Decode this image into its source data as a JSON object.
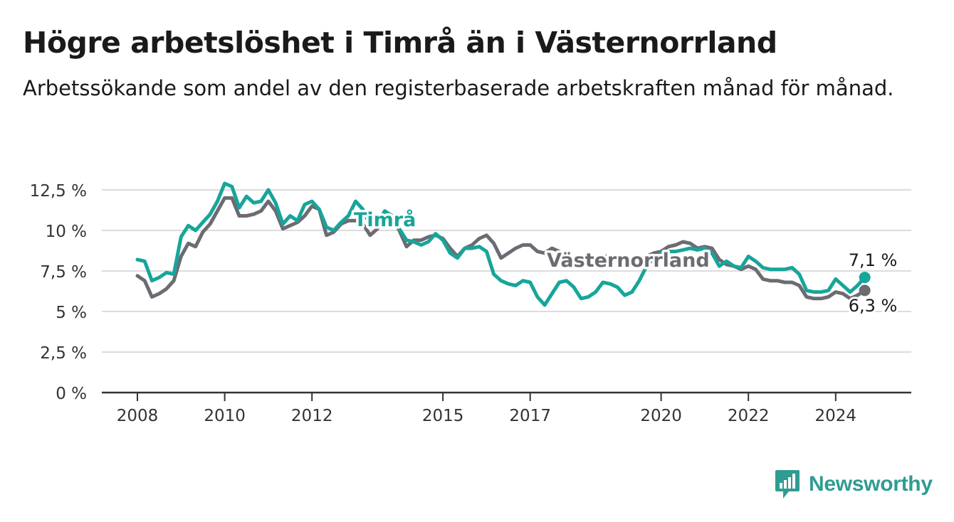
{
  "title": "Högre arbetslöshet i Timrå än i Västernorrland",
  "subtitle": "Arbetssökande som andel av den registerbaserade arbetskraften månad för månad.",
  "brand": {
    "name": "Newsworthy",
    "color": "#2f9c92",
    "icon": "bar-chart-icon"
  },
  "chart_data": {
    "type": "line",
    "x_axis_ticks": [
      "2008",
      "2010",
      "2012",
      "2015",
      "2017",
      "2020",
      "2022",
      "2024"
    ],
    "y_axis_ticks": [
      "0 %",
      "2,5 %",
      "5 %",
      "7,5 %",
      "10 %",
      "12,5 %"
    ],
    "ylim": [
      0,
      12.5
    ],
    "x_range": [
      "2008-01",
      "2024-12"
    ],
    "grid": "horizontal",
    "series": [
      {
        "name": "Västernorrland",
        "color": "#6d6b72",
        "end_label": "6,3 %",
        "points": [
          [
            "2008-01",
            7.2
          ],
          [
            "2008-03",
            6.9
          ],
          [
            "2008-05",
            5.9
          ],
          [
            "2008-07",
            6.1
          ],
          [
            "2008-09",
            6.4
          ],
          [
            "2008-11",
            6.9
          ],
          [
            "2009-01",
            8.4
          ],
          [
            "2009-03",
            9.2
          ],
          [
            "2009-05",
            9.0
          ],
          [
            "2009-07",
            9.9
          ],
          [
            "2009-09",
            10.4
          ],
          [
            "2009-11",
            11.2
          ],
          [
            "2010-01",
            12.0
          ],
          [
            "2010-03",
            12.0
          ],
          [
            "2010-05",
            10.9
          ],
          [
            "2010-07",
            10.9
          ],
          [
            "2010-09",
            11.0
          ],
          [
            "2010-11",
            11.2
          ],
          [
            "2011-01",
            11.8
          ],
          [
            "2011-03",
            11.2
          ],
          [
            "2011-05",
            10.1
          ],
          [
            "2011-07",
            10.3
          ],
          [
            "2011-09",
            10.5
          ],
          [
            "2011-11",
            10.9
          ],
          [
            "2012-01",
            11.5
          ],
          [
            "2012-03",
            11.3
          ],
          [
            "2012-05",
            9.7
          ],
          [
            "2012-07",
            9.9
          ],
          [
            "2012-09",
            10.4
          ],
          [
            "2012-11",
            10.6
          ],
          [
            "2013-01",
            10.6
          ],
          [
            "2013-03",
            10.4
          ],
          [
            "2013-05",
            9.7
          ],
          [
            "2013-07",
            10.1
          ],
          [
            "2013-09",
            10.9
          ],
          [
            "2013-11",
            10.9
          ],
          [
            "2014-01",
            10.0
          ],
          [
            "2014-03",
            9.0
          ],
          [
            "2014-05",
            9.4
          ],
          [
            "2014-07",
            9.4
          ],
          [
            "2014-09",
            9.6
          ],
          [
            "2014-11",
            9.7
          ],
          [
            "2015-01",
            9.5
          ],
          [
            "2015-03",
            8.9
          ],
          [
            "2015-05",
            8.4
          ],
          [
            "2015-07",
            8.9
          ],
          [
            "2015-09",
            9.1
          ],
          [
            "2015-11",
            9.5
          ],
          [
            "2016-01",
            9.7
          ],
          [
            "2016-03",
            9.2
          ],
          [
            "2016-05",
            8.3
          ],
          [
            "2016-07",
            8.6
          ],
          [
            "2016-09",
            8.9
          ],
          [
            "2016-11",
            9.1
          ],
          [
            "2017-01",
            9.1
          ],
          [
            "2017-03",
            8.7
          ],
          [
            "2017-05",
            8.6
          ],
          [
            "2017-07",
            8.9
          ],
          [
            "2017-09",
            8.7
          ],
          [
            "2017-11",
            8.4
          ],
          [
            "2018-01",
            8.3
          ],
          [
            "2018-03",
            8.4
          ],
          [
            "2018-05",
            8.1
          ],
          [
            "2018-07",
            8.2
          ],
          [
            "2018-09",
            8.4
          ],
          [
            "2018-11",
            8.4
          ],
          [
            "2019-01",
            8.3
          ],
          [
            "2019-03",
            8.0
          ],
          [
            "2019-05",
            7.8
          ],
          [
            "2019-07",
            8.1
          ],
          [
            "2019-09",
            8.4
          ],
          [
            "2019-11",
            8.6
          ],
          [
            "2020-01",
            8.7
          ],
          [
            "2020-03",
            9.0
          ],
          [
            "2020-05",
            9.1
          ],
          [
            "2020-07",
            9.3
          ],
          [
            "2020-09",
            9.2
          ],
          [
            "2020-11",
            8.9
          ],
          [
            "2021-01",
            9.0
          ],
          [
            "2021-03",
            8.9
          ],
          [
            "2021-05",
            8.2
          ],
          [
            "2021-07",
            7.9
          ],
          [
            "2021-09",
            7.8
          ],
          [
            "2021-11",
            7.6
          ],
          [
            "2022-01",
            7.8
          ],
          [
            "2022-03",
            7.6
          ],
          [
            "2022-05",
            7.0
          ],
          [
            "2022-07",
            6.9
          ],
          [
            "2022-09",
            6.9
          ],
          [
            "2022-11",
            6.8
          ],
          [
            "2023-01",
            6.8
          ],
          [
            "2023-03",
            6.6
          ],
          [
            "2023-05",
            5.9
          ],
          [
            "2023-07",
            5.8
          ],
          [
            "2023-09",
            5.8
          ],
          [
            "2023-11",
            5.9
          ],
          [
            "2024-01",
            6.2
          ],
          [
            "2024-03",
            6.1
          ],
          [
            "2024-05",
            5.8
          ],
          [
            "2024-07",
            6.0
          ],
          [
            "2024-09",
            6.3
          ]
        ]
      },
      {
        "name": "Timrå",
        "color": "#17a59a",
        "end_label": "7,1 %",
        "points": [
          [
            "2008-01",
            8.2
          ],
          [
            "2008-03",
            8.1
          ],
          [
            "2008-05",
            6.9
          ],
          [
            "2008-07",
            7.1
          ],
          [
            "2008-09",
            7.4
          ],
          [
            "2008-11",
            7.3
          ],
          [
            "2009-01",
            9.6
          ],
          [
            "2009-03",
            10.3
          ],
          [
            "2009-05",
            10.0
          ],
          [
            "2009-07",
            10.5
          ],
          [
            "2009-09",
            11.0
          ],
          [
            "2009-11",
            11.8
          ],
          [
            "2010-01",
            12.9
          ],
          [
            "2010-03",
            12.7
          ],
          [
            "2010-05",
            11.4
          ],
          [
            "2010-07",
            12.1
          ],
          [
            "2010-09",
            11.7
          ],
          [
            "2010-11",
            11.8
          ],
          [
            "2011-01",
            12.5
          ],
          [
            "2011-03",
            11.7
          ],
          [
            "2011-05",
            10.4
          ],
          [
            "2011-07",
            10.9
          ],
          [
            "2011-09",
            10.6
          ],
          [
            "2011-11",
            11.6
          ],
          [
            "2012-01",
            11.8
          ],
          [
            "2012-03",
            11.3
          ],
          [
            "2012-05",
            10.2
          ],
          [
            "2012-07",
            10.0
          ],
          [
            "2012-09",
            10.5
          ],
          [
            "2012-11",
            10.9
          ],
          [
            "2013-01",
            11.8
          ],
          [
            "2013-03",
            11.3
          ],
          [
            "2013-05",
            10.3
          ],
          [
            "2013-07",
            10.4
          ],
          [
            "2013-09",
            11.2
          ],
          [
            "2013-11",
            10.9
          ],
          [
            "2014-01",
            10.1
          ],
          [
            "2014-03",
            9.4
          ],
          [
            "2014-05",
            9.3
          ],
          [
            "2014-07",
            9.1
          ],
          [
            "2014-09",
            9.3
          ],
          [
            "2014-11",
            9.8
          ],
          [
            "2015-01",
            9.4
          ],
          [
            "2015-03",
            8.6
          ],
          [
            "2015-05",
            8.3
          ],
          [
            "2015-07",
            8.9
          ],
          [
            "2015-09",
            8.9
          ],
          [
            "2015-11",
            9.0
          ],
          [
            "2016-01",
            8.7
          ],
          [
            "2016-03",
            7.3
          ],
          [
            "2016-05",
            6.9
          ],
          [
            "2016-07",
            6.7
          ],
          [
            "2016-09",
            6.6
          ],
          [
            "2016-11",
            6.9
          ],
          [
            "2017-01",
            6.8
          ],
          [
            "2017-03",
            5.9
          ],
          [
            "2017-05",
            5.4
          ],
          [
            "2017-07",
            6.1
          ],
          [
            "2017-09",
            6.8
          ],
          [
            "2017-11",
            6.9
          ],
          [
            "2018-01",
            6.5
          ],
          [
            "2018-03",
            5.8
          ],
          [
            "2018-05",
            5.9
          ],
          [
            "2018-07",
            6.2
          ],
          [
            "2018-09",
            6.8
          ],
          [
            "2018-11",
            6.7
          ],
          [
            "2019-01",
            6.5
          ],
          [
            "2019-03",
            6.0
          ],
          [
            "2019-05",
            6.2
          ],
          [
            "2019-07",
            6.9
          ],
          [
            "2019-09",
            7.8
          ],
          [
            "2019-11",
            8.3
          ],
          [
            "2020-01",
            8.6
          ],
          [
            "2020-03",
            8.7
          ],
          [
            "2020-05",
            8.7
          ],
          [
            "2020-07",
            8.8
          ],
          [
            "2020-09",
            8.9
          ],
          [
            "2020-11",
            8.8
          ],
          [
            "2021-01",
            8.9
          ],
          [
            "2021-03",
            8.6
          ],
          [
            "2021-05",
            7.8
          ],
          [
            "2021-07",
            8.1
          ],
          [
            "2021-09",
            7.8
          ],
          [
            "2021-11",
            7.7
          ],
          [
            "2022-01",
            8.4
          ],
          [
            "2022-03",
            8.1
          ],
          [
            "2022-05",
            7.7
          ],
          [
            "2022-07",
            7.6
          ],
          [
            "2022-09",
            7.6
          ],
          [
            "2022-11",
            7.6
          ],
          [
            "2023-01",
            7.7
          ],
          [
            "2023-03",
            7.3
          ],
          [
            "2023-05",
            6.3
          ],
          [
            "2023-07",
            6.2
          ],
          [
            "2023-09",
            6.2
          ],
          [
            "2023-11",
            6.3
          ],
          [
            "2024-01",
            7.0
          ],
          [
            "2024-03",
            6.6
          ],
          [
            "2024-05",
            6.2
          ],
          [
            "2024-07",
            6.6
          ],
          [
            "2024-09",
            7.1
          ]
        ]
      }
    ],
    "series_labels": [
      "Timrå",
      "Västernorrland"
    ]
  }
}
